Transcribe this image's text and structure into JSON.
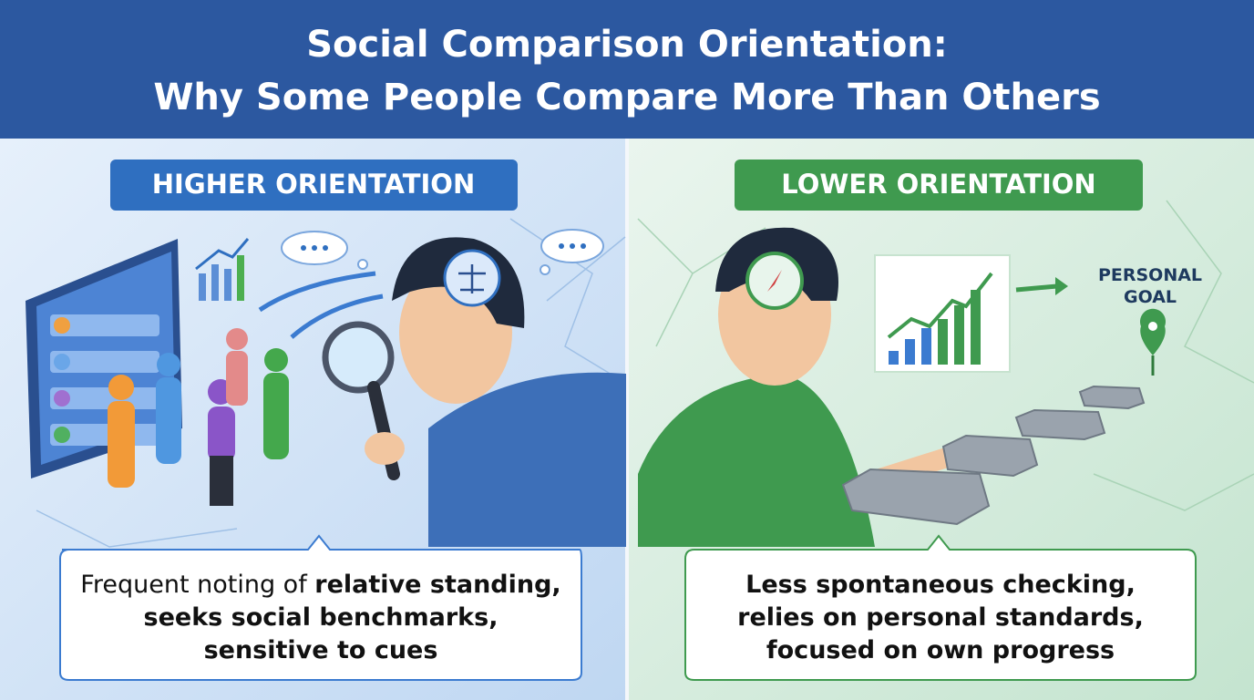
{
  "header": {
    "title_line1": "Social Comparison Orientation:",
    "title_line2": "Why Some People Compare More Than Others"
  },
  "left": {
    "label": "HIGHER ORIENTATION",
    "caption": [
      [
        "Frequent noting of ",
        "relative standing,"
      ],
      [
        "seeks social benchmarks,"
      ],
      [
        "sensitive to cues"
      ]
    ]
  },
  "right": {
    "label": "LOWER ORIENTATION",
    "goal_label": [
      "PERSONAL",
      "GOAL"
    ],
    "caption": [
      [
        "Less spontaneous checking,"
      ],
      [
        "relies on personal standards,"
      ],
      [
        "focused on own progress"
      ]
    ]
  }
}
